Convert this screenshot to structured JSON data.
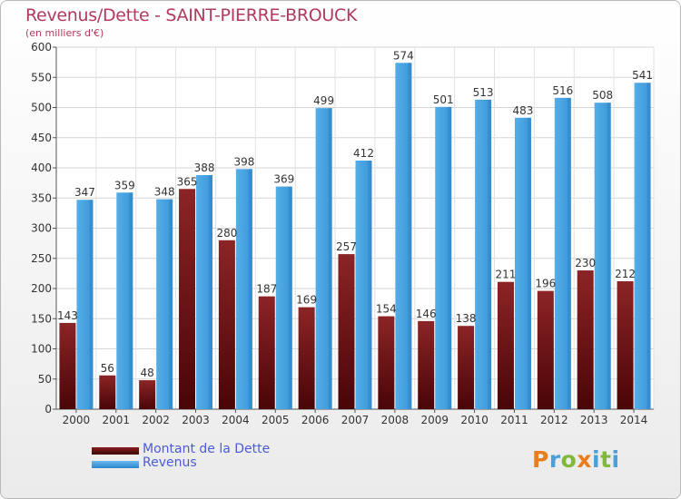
{
  "title": "Revenus/Dette - SAINT-PIERRE-BROUCK",
  "subtitle": "(en milliers d'€)",
  "colors": {
    "dette": "#7a1518",
    "revenus": "#3f9de0",
    "title": "#b03a5c",
    "legend_text": "#4b5bd6"
  },
  "legend": [
    {
      "label": "Montant de la Dette",
      "color": "#6b0f12"
    },
    {
      "label": "Revenus",
      "color": "#3f9de0"
    }
  ],
  "logo": {
    "letters": [
      "P",
      "r",
      "o",
      "x",
      "i",
      "t",
      "i"
    ],
    "colors": [
      "#e87f1c",
      "#4aa0d8",
      "#7fb83b",
      "#e87f1c",
      "#4aa0d8",
      "#7fb83b",
      "#4aa0d8"
    ]
  },
  "chart_data": {
    "type": "bar",
    "title": "Revenus/Dette - SAINT-PIERRE-BROUCK",
    "ylabel": "(en milliers d'€)",
    "xlabel": "",
    "categories": [
      "2000",
      "2001",
      "2002",
      "2003",
      "2004",
      "2005",
      "2006",
      "2007",
      "2008",
      "2009",
      "2010",
      "2011",
      "2012",
      "2013",
      "2014"
    ],
    "series": [
      {
        "name": "Montant de la Dette",
        "values": [
          143,
          56,
          48,
          365,
          280,
          187,
          169,
          257,
          154,
          146,
          138,
          211,
          196,
          230,
          212
        ]
      },
      {
        "name": "Revenus",
        "values": [
          347,
          359,
          348,
          388,
          398,
          369,
          499,
          412,
          574,
          501,
          513,
          483,
          516,
          508,
          541
        ]
      }
    ],
    "ylim": [
      0,
      600
    ],
    "yticks": [
      0,
      50,
      100,
      150,
      200,
      250,
      300,
      350,
      400,
      450,
      500,
      550,
      600
    ],
    "grid": true,
    "legend_position": "bottom-left"
  }
}
